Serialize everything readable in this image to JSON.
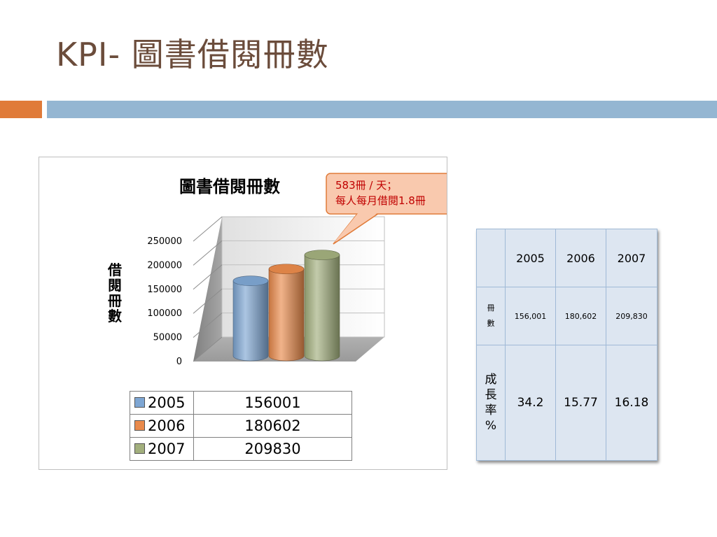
{
  "slide": {
    "title": "KPI- 圖書借閱冊數",
    "accent_orange": "#e07b39",
    "accent_blue": "#94b6d2"
  },
  "callout": {
    "line1": "583冊 / 天；",
    "line2": "每人每月借閱1.8冊",
    "text_color": "#c00000",
    "fill": "#f9c9ae",
    "stroke": "#e07b39"
  },
  "chart_data": {
    "type": "bar",
    "style": "3d-cylinder",
    "title": "圖書借閱冊數",
    "ylabel": "借閱冊數",
    "xlabel": "",
    "ylim": [
      0,
      250000
    ],
    "yticks": [
      "0",
      "50000",
      "100000",
      "150000",
      "200000",
      "250000"
    ],
    "grid": true,
    "series": [
      {
        "name": "2005",
        "value": 156001,
        "label": "156001",
        "color": "#7ea6d3"
      },
      {
        "name": "2006",
        "value": 180602,
        "label": "180602",
        "color": "#e98a4b"
      },
      {
        "name": "2007",
        "value": 209830,
        "label": "209830",
        "color": "#a2af7d"
      }
    ]
  },
  "table": {
    "header": [
      "",
      "2005",
      "2006",
      "2007"
    ],
    "row1_label": [
      "冊",
      "數"
    ],
    "row1": [
      "156,001",
      "180,602",
      "209,830"
    ],
    "row2_label": [
      "成",
      "長",
      "率",
      "%"
    ],
    "row2": [
      "34.2",
      "15.77",
      "16.18"
    ]
  }
}
